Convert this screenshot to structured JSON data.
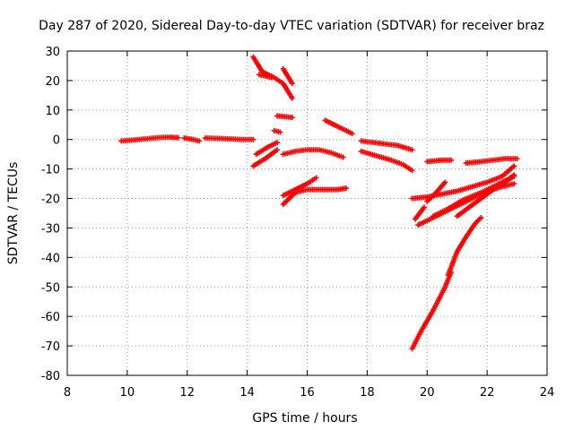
{
  "chart_data": {
    "type": "scatter",
    "title": "Day 287 of 2020, Sidereal Day-to-day VTEC variation (SDTVAR) for receiver braz",
    "xlabel": "GPS time / hours",
    "ylabel": "SDTVAR / TECUs",
    "xlim": [
      8,
      24
    ],
    "ylim": [
      -80,
      30
    ],
    "xticks": [
      "8",
      "10",
      "12",
      "14",
      "16",
      "18",
      "20",
      "22",
      "24"
    ],
    "yticks": [
      "-80",
      "-70",
      "-60",
      "-50",
      "-40",
      "-30",
      "-20",
      "-10",
      "0",
      "10",
      "20",
      "30"
    ],
    "xtick_values": [
      8,
      10,
      12,
      14,
      16,
      18,
      20,
      22,
      24
    ],
    "ytick_values": [
      -80,
      -70,
      -60,
      -50,
      -40,
      -30,
      -20,
      -10,
      0,
      10,
      20,
      30
    ],
    "grid": true,
    "legend": "none",
    "marker": "plus",
    "series_color": "#ff0000",
    "series": [
      {
        "x": [
          9.8,
          10.4,
          11.0,
          11.4,
          11.7
        ],
        "y": [
          -0.5,
          0.0,
          0.6,
          0.8,
          0.6
        ]
      },
      {
        "x": [
          11.9,
          12.2,
          12.4
        ],
        "y": [
          0.5,
          0.0,
          -0.5
        ]
      },
      {
        "x": [
          12.6,
          13.2,
          13.8,
          14.2
        ],
        "y": [
          0.5,
          0.3,
          0.0,
          0.0
        ]
      },
      {
        "x": [
          14.2,
          14.6,
          15.0
        ],
        "y": [
          -9.0,
          -6.5,
          -3.5
        ]
      },
      {
        "x": [
          14.3,
          14.7,
          15.0
        ],
        "y": [
          -5.0,
          -2.5,
          -1.0
        ]
      },
      {
        "x": [
          14.2,
          14.5,
          14.9,
          15.2,
          15.5
        ],
        "y": [
          28.0,
          23.0,
          21.0,
          19.0,
          14.0
        ]
      },
      {
        "x": [
          14.4,
          14.8
        ],
        "y": [
          22.0,
          21.0
        ]
      },
      {
        "x": [
          15.2,
          15.5
        ],
        "y": [
          24.0,
          19.0
        ]
      },
      {
        "x": [
          14.9,
          15.1
        ],
        "y": [
          3.0,
          2.5
        ]
      },
      {
        "x": [
          15.0,
          15.5
        ],
        "y": [
          8.0,
          7.5
        ]
      },
      {
        "x": [
          15.2,
          15.6,
          16.0,
          16.4,
          16.8,
          17.2
        ],
        "y": [
          -5.0,
          -4.0,
          -3.5,
          -3.5,
          -4.5,
          -6.0
        ]
      },
      {
        "x": [
          15.2,
          15.6,
          16.0,
          16.3
        ],
        "y": [
          -19.0,
          -17.0,
          -15.0,
          -13.0
        ]
      },
      {
        "x": [
          15.2,
          15.6,
          16.0,
          16.5,
          17.0,
          17.3
        ],
        "y": [
          -22.0,
          -18.0,
          -17.0,
          -17.0,
          -17.0,
          -16.5
        ]
      },
      {
        "x": [
          16.6,
          17.0,
          17.5
        ],
        "y": [
          6.5,
          4.5,
          2.0
        ]
      },
      {
        "x": [
          17.8,
          18.2,
          18.6,
          19.0,
          19.5
        ],
        "y": [
          -0.5,
          -1.0,
          -1.5,
          -2.0,
          -3.5
        ]
      },
      {
        "x": [
          17.8,
          18.3,
          18.8,
          19.2,
          19.5
        ],
        "y": [
          -4.0,
          -5.5,
          -7.0,
          -8.5,
          -10.5
        ]
      },
      {
        "x": [
          19.5,
          19.8,
          20.2,
          20.6,
          20.8
        ],
        "y": [
          -71.0,
          -65.0,
          -58.0,
          -50.0,
          -45.0
        ]
      },
      {
        "x": [
          20.7,
          21.0,
          21.3,
          21.6,
          21.8
        ],
        "y": [
          -46.0,
          -38.0,
          -33.0,
          -28.5,
          -26.5
        ]
      },
      {
        "x": [
          19.6,
          19.9
        ],
        "y": [
          -27.0,
          -23.0
        ]
      },
      {
        "x": [
          19.7,
          20.3,
          20.9,
          21.5,
          22.0,
          22.5,
          22.9
        ],
        "y": [
          -29.0,
          -26.0,
          -23.0,
          -20.0,
          -17.5,
          -16.0,
          -15.0
        ]
      },
      {
        "x": [
          20.2,
          20.7,
          21.2,
          21.8,
          22.3,
          22.9
        ],
        "y": [
          -26.0,
          -23.5,
          -20.5,
          -18.0,
          -15.5,
          -12.5
        ]
      },
      {
        "x": [
          19.5,
          20.0,
          20.5,
          21.0,
          21.5,
          22.0,
          22.5,
          22.9
        ],
        "y": [
          -20.0,
          -19.5,
          -18.5,
          -17.5,
          -16.0,
          -14.5,
          -12.5,
          -9.0
        ]
      },
      {
        "x": [
          20.0,
          20.3,
          20.6
        ],
        "y": [
          -21.0,
          -18.0,
          -14.5
        ]
      },
      {
        "x": [
          21.0,
          21.4,
          21.8,
          22.2,
          22.6,
          22.9
        ],
        "y": [
          -26.0,
          -23.0,
          -20.0,
          -17.0,
          -14.5,
          -12.0
        ]
      },
      {
        "x": [
          20.0,
          20.5,
          20.8
        ],
        "y": [
          -7.5,
          -7.0,
          -7.0
        ]
      },
      {
        "x": [
          21.3,
          21.8,
          22.2,
          22.6,
          23.0
        ],
        "y": [
          -8.0,
          -7.5,
          -7.0,
          -6.5,
          -6.5
        ]
      }
    ]
  }
}
